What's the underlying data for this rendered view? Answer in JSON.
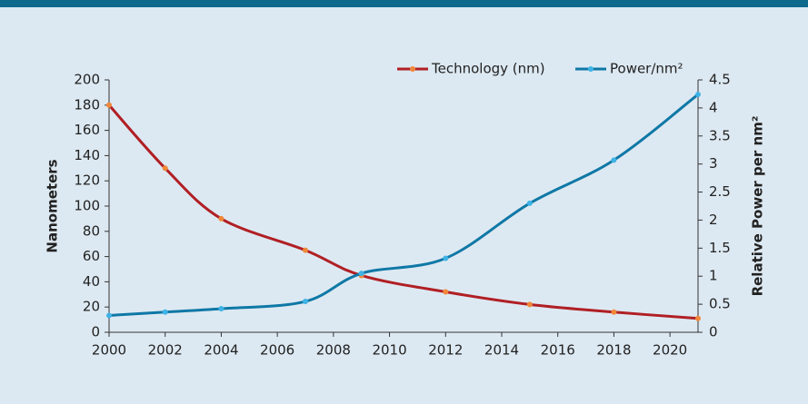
{
  "chart_data": {
    "type": "line",
    "x": [
      2000,
      2002,
      2004,
      2007,
      2009,
      2012,
      2015,
      2018,
      2021
    ],
    "series": [
      {
        "name": "Technology (nm)",
        "color": "#b01f24",
        "marker_color": "#f0883a",
        "values": [
          180,
          130,
          90,
          65,
          45,
          32,
          22,
          16,
          11
        ]
      },
      {
        "name": "Power/nm²",
        "color": "#0f78a6",
        "marker_color": "#3fb3e6",
        "axis": "y2",
        "values": [
          0.3,
          0.36,
          0.42,
          0.55,
          1.05,
          1.32,
          2.3,
          3.07,
          4.24
        ]
      }
    ],
    "ylabel": "Nanometers",
    "y2label": "Relative Power per nm²",
    "xlim": [
      2000,
      2021
    ],
    "xticks": [
      2000,
      2002,
      2004,
      2006,
      2008,
      2010,
      2012,
      2014,
      2016,
      2018,
      2020
    ],
    "ylim": [
      0,
      200
    ],
    "yticks": [
      0,
      20,
      40,
      60,
      80,
      100,
      120,
      140,
      160,
      180,
      200
    ],
    "y2lim": [
      0,
      4.5
    ],
    "y2ticks": [
      0,
      0.5,
      1,
      1.5,
      2,
      2.5,
      3,
      3.5,
      4,
      4.5
    ],
    "legend": "top-right"
  }
}
